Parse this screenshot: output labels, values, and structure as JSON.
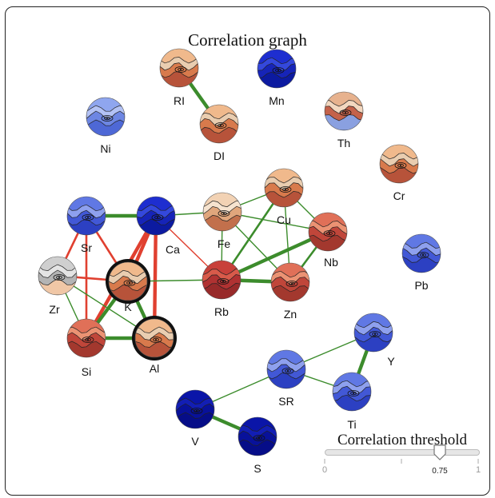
{
  "title": "Correlation graph",
  "slider": {
    "title": "Correlation threshold",
    "min_label": "0",
    "max_label": "1",
    "value_label": "0.75",
    "value": 0.75
  },
  "colors": {
    "positive_edge": "#3c8c2c",
    "negative_edge": "#e04030",
    "highlight_ring": "#111111"
  },
  "nodes": [
    {
      "id": "RI",
      "label": "RI",
      "theme": "warm",
      "highlight": false
    },
    {
      "id": "Mn",
      "label": "Mn",
      "theme": "deepblue",
      "highlight": false
    },
    {
      "id": "Ni",
      "label": "Ni",
      "theme": "lightblue",
      "highlight": false
    },
    {
      "id": "DI",
      "label": "DI",
      "theme": "warm",
      "highlight": false
    },
    {
      "id": "Th",
      "label": "Th",
      "theme": "warmmix",
      "highlight": false
    },
    {
      "id": "Cr",
      "label": "Cr",
      "theme": "warm",
      "highlight": false
    },
    {
      "id": "Sr",
      "label": "Sr",
      "theme": "blue",
      "highlight": false
    },
    {
      "id": "Ca",
      "label": "Ca",
      "theme": "deepblue",
      "highlight": false
    },
    {
      "id": "Fe",
      "label": "Fe",
      "theme": "warmlight",
      "highlight": false
    },
    {
      "id": "Cu",
      "label": "Cu",
      "theme": "warm",
      "highlight": false
    },
    {
      "id": "Nb",
      "label": "Nb",
      "theme": "red",
      "highlight": false
    },
    {
      "id": "Pb",
      "label": "Pb",
      "theme": "blue",
      "highlight": false
    },
    {
      "id": "Zr",
      "label": "Zr",
      "theme": "gray",
      "highlight": false
    },
    {
      "id": "K",
      "label": "K",
      "theme": "warm",
      "highlight": true
    },
    {
      "id": "Rb",
      "label": "Rb",
      "theme": "darkred",
      "highlight": false
    },
    {
      "id": "Zn",
      "label": "Zn",
      "theme": "red",
      "highlight": false
    },
    {
      "id": "Si",
      "label": "Si",
      "theme": "red",
      "highlight": false
    },
    {
      "id": "Al",
      "label": "Al",
      "theme": "warm",
      "highlight": true
    },
    {
      "id": "Y",
      "label": "Y",
      "theme": "blue",
      "highlight": false
    },
    {
      "id": "SR",
      "label": "SR",
      "theme": "blue",
      "highlight": false
    },
    {
      "id": "Ti",
      "label": "Ti",
      "theme": "blue",
      "highlight": false
    },
    {
      "id": "V",
      "label": "V",
      "theme": "navy",
      "highlight": false
    },
    {
      "id": "S",
      "label": "S",
      "theme": "navy",
      "highlight": false
    }
  ],
  "edges": [
    {
      "from": "RI",
      "to": "DI",
      "sign": "positive",
      "strength": "strong"
    },
    {
      "from": "Sr",
      "to": "Ca",
      "sign": "positive",
      "strength": "strong"
    },
    {
      "from": "Sr",
      "to": "Zr",
      "sign": "negative",
      "strength": "medium"
    },
    {
      "from": "Sr",
      "to": "K",
      "sign": "negative",
      "strength": "medium"
    },
    {
      "from": "Sr",
      "to": "Si",
      "sign": "negative",
      "strength": "medium"
    },
    {
      "from": "Ca",
      "to": "K",
      "sign": "negative",
      "strength": "strong"
    },
    {
      "from": "Ca",
      "to": "Si",
      "sign": "negative",
      "strength": "strong"
    },
    {
      "from": "Ca",
      "to": "Al",
      "sign": "negative",
      "strength": "strong"
    },
    {
      "from": "Ca",
      "to": "Rb",
      "sign": "negative",
      "strength": "weak"
    },
    {
      "from": "Ca",
      "to": "Fe",
      "sign": "positive",
      "strength": "weak"
    },
    {
      "from": "Zr",
      "to": "K",
      "sign": "negative",
      "strength": "medium"
    },
    {
      "from": "Zr",
      "to": "Si",
      "sign": "positive",
      "strength": "weak"
    },
    {
      "from": "Zr",
      "to": "Al",
      "sign": "positive",
      "strength": "weak"
    },
    {
      "from": "K",
      "to": "Si",
      "sign": "positive",
      "strength": "strong"
    },
    {
      "from": "K",
      "to": "Al",
      "sign": "positive",
      "strength": "strong"
    },
    {
      "from": "K",
      "to": "Rb",
      "sign": "positive",
      "strength": "weak"
    },
    {
      "from": "Si",
      "to": "Al",
      "sign": "positive",
      "strength": "strong"
    },
    {
      "from": "Fe",
      "to": "Cu",
      "sign": "positive",
      "strength": "weak"
    },
    {
      "from": "Fe",
      "to": "Nb",
      "sign": "positive",
      "strength": "weak"
    },
    {
      "from": "Fe",
      "to": "Zn",
      "sign": "positive",
      "strength": "weak"
    },
    {
      "from": "Fe",
      "to": "Rb",
      "sign": "positive",
      "strength": "weak"
    },
    {
      "from": "Cu",
      "to": "Nb",
      "sign": "positive",
      "strength": "weak"
    },
    {
      "from": "Cu",
      "to": "Rb",
      "sign": "positive",
      "strength": "medium"
    },
    {
      "from": "Cu",
      "to": "Zn",
      "sign": "positive",
      "strength": "weak"
    },
    {
      "from": "Nb",
      "to": "Rb",
      "sign": "positive",
      "strength": "strong"
    },
    {
      "from": "Nb",
      "to": "Zn",
      "sign": "positive",
      "strength": "medium"
    },
    {
      "from": "Rb",
      "to": "Zn",
      "sign": "positive",
      "strength": "strong"
    },
    {
      "from": "SR",
      "to": "Y",
      "sign": "positive",
      "strength": "weak"
    },
    {
      "from": "SR",
      "to": "Ti",
      "sign": "positive",
      "strength": "weak"
    },
    {
      "from": "SR",
      "to": "V",
      "sign": "positive",
      "strength": "weak"
    },
    {
      "from": "Y",
      "to": "Ti",
      "sign": "positive",
      "strength": "strong"
    },
    {
      "from": "V",
      "to": "S",
      "sign": "positive",
      "strength": "strong"
    }
  ]
}
